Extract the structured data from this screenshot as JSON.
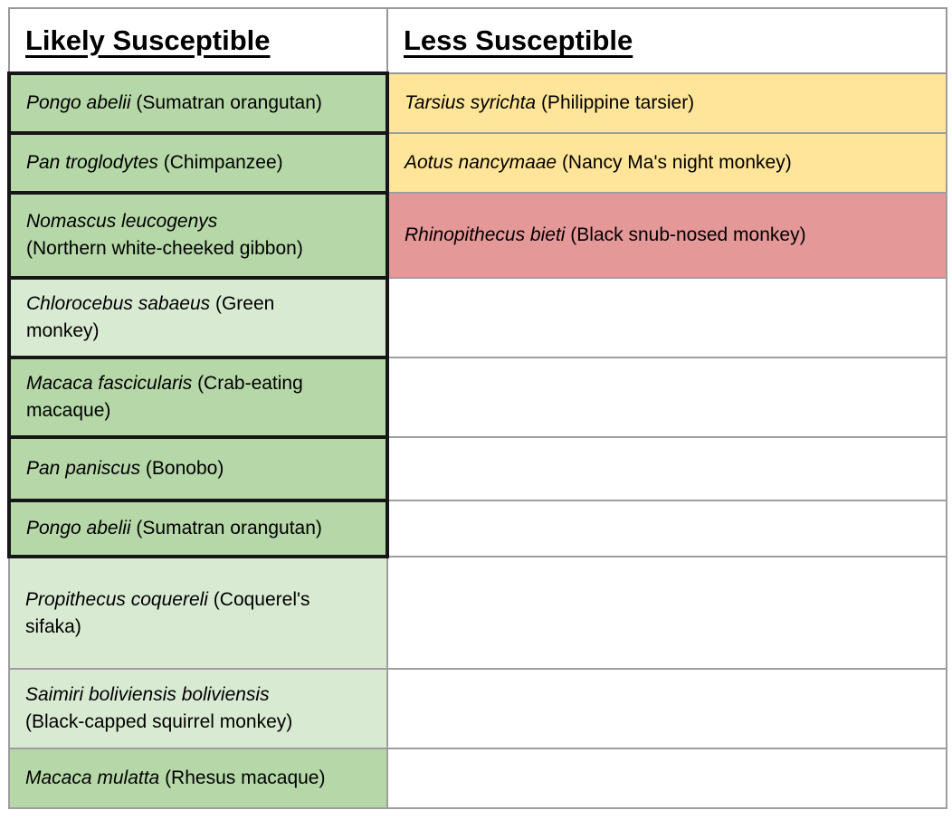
{
  "colors": {
    "green": "#b6d7a8",
    "light_green": "#d9ead3",
    "yellow": "#ffe599",
    "red": "#e59898",
    "white": "#ffffff",
    "emphasis_border": "#161616",
    "thin_border": "#9e9e9e",
    "text": "#000000"
  },
  "headers": {
    "likely": "Likely Susceptible",
    "less": "Less Susceptible"
  },
  "rows": [
    {
      "likely": {
        "bg": "green",
        "emphasis": true,
        "lines": [
          [
            {
              "t": "Pongo abelii",
              "i": true
            },
            {
              "t": " (Sumatran orangutan)",
              "i": false
            }
          ]
        ]
      },
      "less": {
        "bg": "yellow",
        "emphasis": false,
        "lines": [
          [
            {
              "t": "Tarsius syrichta",
              "i": true
            },
            {
              "t": " (Philippine tarsier)",
              "i": false
            }
          ]
        ]
      }
    },
    {
      "likely": {
        "bg": "green",
        "emphasis": true,
        "lines": [
          [
            {
              "t": "Pan troglodytes",
              "i": true
            },
            {
              "t": " (Chimpanzee)",
              "i": false
            }
          ]
        ]
      },
      "less": {
        "bg": "yellow",
        "emphasis": false,
        "lines": [
          [
            {
              "t": "Aotus nancymaae",
              "i": true
            },
            {
              "t": " (Nancy Ma's night monkey)",
              "i": false
            }
          ]
        ]
      }
    },
    {
      "likely": {
        "bg": "green",
        "emphasis": true,
        "lines": [
          [
            {
              "t": "Nomascus leucogenys",
              "i": true
            }
          ],
          [
            {
              "t": "(Northern white-cheeked gibbon)",
              "i": false
            }
          ]
        ]
      },
      "less": {
        "bg": "red",
        "emphasis": false,
        "lines": [
          [
            {
              "t": "Rhinopithecus bieti",
              "i": true
            },
            {
              "t": " (Black snub-nosed monkey)",
              "i": false
            }
          ]
        ]
      }
    },
    {
      "likely": {
        "bg": "light_green",
        "emphasis": true,
        "lines": [
          [
            {
              "t": "Chlorocebus sabaeus",
              "i": true
            },
            {
              "t": " (Green",
              "i": false
            }
          ],
          [
            {
              "t": "monkey)",
              "i": false
            }
          ]
        ]
      },
      "less": {
        "bg": "white",
        "emphasis": false,
        "lines": []
      }
    },
    {
      "likely": {
        "bg": "green",
        "emphasis": true,
        "lines": [
          [
            {
              "t": "Macaca fascicularis",
              "i": true
            },
            {
              "t": " (Crab-eating",
              "i": false
            }
          ],
          [
            {
              "t": "macaque)",
              "i": false
            }
          ]
        ]
      },
      "less": {
        "bg": "white",
        "emphasis": false,
        "lines": []
      }
    },
    {
      "likely": {
        "bg": "green",
        "emphasis": true,
        "lines": [
          [
            {
              "t": "Pan paniscus",
              "i": true
            },
            {
              "t": " (Bonobo)",
              "i": false
            }
          ]
        ]
      },
      "less": {
        "bg": "white",
        "emphasis": false,
        "lines": []
      }
    },
    {
      "likely": {
        "bg": "green",
        "emphasis": true,
        "lines": [
          [
            {
              "t": "Pongo abelii",
              "i": true
            },
            {
              "t": " (Sumatran orangutan)",
              "i": false
            }
          ]
        ]
      },
      "less": {
        "bg": "white",
        "emphasis": false,
        "lines": []
      }
    },
    {
      "likely": {
        "bg": "light_green",
        "emphasis": false,
        "lines": [
          [
            {
              "t": "Propithecus coquereli",
              "i": true
            },
            {
              "t": " (Coquerel's",
              "i": false
            }
          ],
          [
            {
              "t": "sifaka)",
              "i": false
            }
          ]
        ]
      },
      "less": {
        "bg": "white",
        "emphasis": false,
        "lines": []
      }
    },
    {
      "likely": {
        "bg": "light_green",
        "emphasis": false,
        "lines": [
          [
            {
              "t": "Saimiri boliviensis boliviensis",
              "i": true
            }
          ],
          [
            {
              "t": "(Black-capped squirrel monkey)",
              "i": false
            }
          ]
        ]
      },
      "less": {
        "bg": "white",
        "emphasis": false,
        "lines": []
      }
    },
    {
      "likely": {
        "bg": "green",
        "emphasis": false,
        "lines": [
          [
            {
              "t": "Macaca mulatta",
              "i": true
            },
            {
              "t": " (Rhesus macaque)",
              "i": false
            }
          ]
        ]
      },
      "less": {
        "bg": "white",
        "emphasis": false,
        "lines": []
      }
    }
  ]
}
